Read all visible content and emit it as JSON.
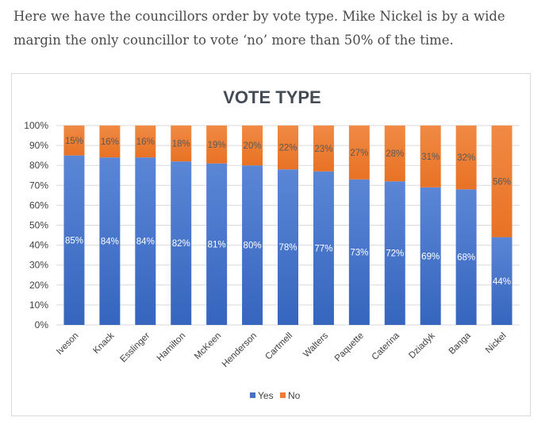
{
  "intro_text": "Here we have the councillors order by vote type. Mike Nickel is by a wide margin the only councillor to vote ‘no’ more than 50% of the time.",
  "chart_data": {
    "type": "bar",
    "stacked": true,
    "title": "VOTE TYPE",
    "categories": [
      "Iveson",
      "Knack",
      "Esslinger",
      "Hamilton",
      "McKeen",
      "Henderson",
      "Cartmell",
      "Walters",
      "Paquette",
      "Caterina",
      "Dziadyk",
      "Banga",
      "Nickel"
    ],
    "series": [
      {
        "name": "Yes",
        "color": "#4472c4",
        "values": [
          85,
          84,
          84,
          82,
          81,
          80,
          78,
          77,
          73,
          72,
          69,
          68,
          44
        ]
      },
      {
        "name": "No",
        "color": "#ed7d31",
        "values": [
          15,
          16,
          16,
          18,
          19,
          20,
          22,
          23,
          27,
          28,
          31,
          32,
          56
        ]
      }
    ],
    "y_ticks": [
      "0%",
      "10%",
      "20%",
      "30%",
      "40%",
      "50%",
      "60%",
      "70%",
      "80%",
      "90%",
      "100%"
    ],
    "ylim": [
      0,
      100
    ],
    "grid": true,
    "legend_position": "bottom"
  }
}
